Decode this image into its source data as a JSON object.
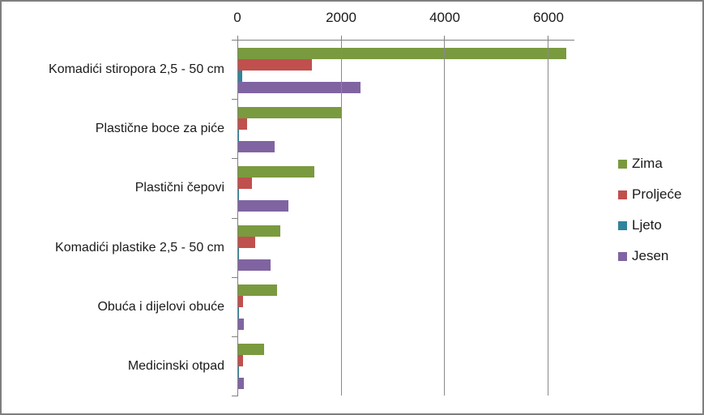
{
  "window": {
    "background": "#ffffff",
    "border_color": "#7f7f7f",
    "axis_color": "#808080",
    "gridline_color": "#898989",
    "text_color": "#1a1a1a"
  },
  "chart_data": {
    "type": "bar",
    "orientation": "horizontal",
    "title": "",
    "xlabel": "",
    "ylabel": "",
    "categories": [
      "Komadići stiropora 2,5 - 50 cm",
      "Plastične boce za piće",
      "Plastični čepovi",
      "Komadići plastike 2,5 - 50 cm",
      "Obuća i dijelovi obuće",
      "Medicinski otpad"
    ],
    "series": [
      {
        "name": "Zima",
        "color": "#7A9A3F",
        "values": [
          6350,
          2000,
          1480,
          820,
          750,
          500
        ]
      },
      {
        "name": "Proljeće",
        "color": "#C0504D",
        "values": [
          1430,
          170,
          270,
          330,
          90,
          100
        ]
      },
      {
        "name": "Ljeto",
        "color": "#31849B",
        "values": [
          80,
          20,
          20,
          20,
          20,
          20
        ]
      },
      {
        "name": "Jesen",
        "color": "#8064A2",
        "values": [
          2370,
          710,
          970,
          630,
          110,
          110
        ]
      }
    ],
    "x_axis": {
      "ticks": [
        0,
        2000,
        4000,
        6000
      ],
      "tick_labels": [
        "0",
        "2000",
        "4000",
        "6000"
      ],
      "min": 0,
      "max": 6500
    },
    "grid": true,
    "legend": {
      "position": "right",
      "entries": [
        "Zima",
        "Proljeće",
        "Ljeto",
        "Jesen"
      ]
    }
  }
}
